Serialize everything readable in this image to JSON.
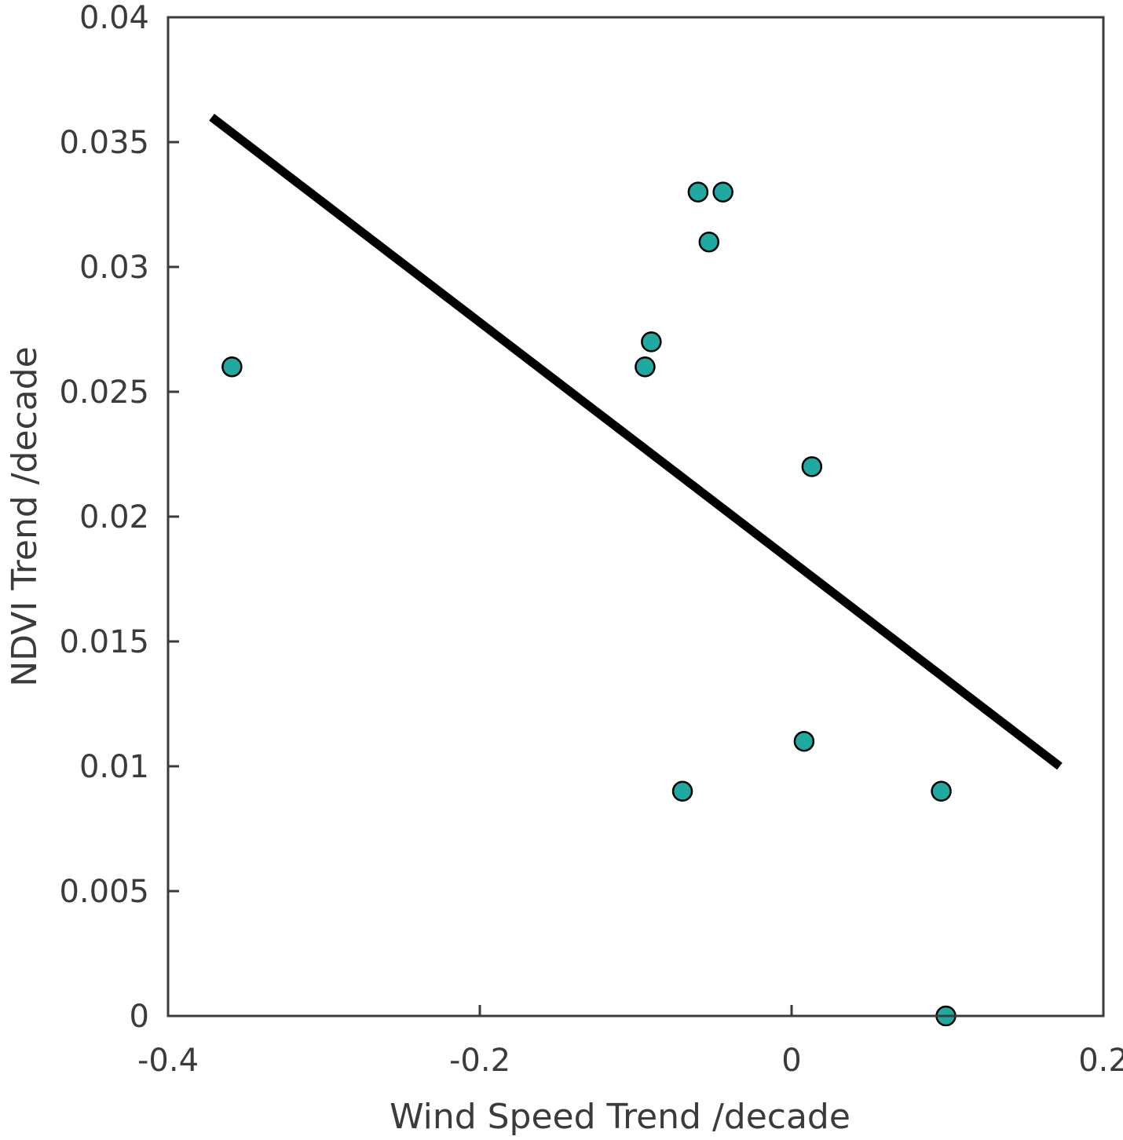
{
  "chart_data": {
    "type": "scatter",
    "title": "",
    "xlabel": "Wind Speed Trend /decade",
    "ylabel": "NDVI Trend /decade",
    "xlim": [
      -0.4,
      0.2
    ],
    "ylim": [
      0,
      0.04
    ],
    "x_ticks": [
      -0.4,
      -0.2,
      0,
      0.2
    ],
    "x_tick_labels": [
      "-0.4",
      "-0.2",
      "0",
      "0.2"
    ],
    "y_ticks": [
      0,
      0.005,
      0.01,
      0.015,
      0.02,
      0.025,
      0.03,
      0.035,
      0.04
    ],
    "y_tick_labels": [
      "0",
      "0.005",
      "0.01",
      "0.015",
      "0.02",
      "0.025",
      "0.03",
      "0.035",
      "0.04"
    ],
    "grid": false,
    "legend": "none",
    "marker_color": "#1fa9a0",
    "points": [
      {
        "x": -0.359,
        "y": 0.026
      },
      {
        "x": -0.094,
        "y": 0.026
      },
      {
        "x": -0.09,
        "y": 0.027
      },
      {
        "x": -0.06,
        "y": 0.033
      },
      {
        "x": -0.044,
        "y": 0.033
      },
      {
        "x": -0.053,
        "y": 0.031
      },
      {
        "x": -0.07,
        "y": 0.009
      },
      {
        "x": 0.013,
        "y": 0.022
      },
      {
        "x": 0.008,
        "y": 0.011
      },
      {
        "x": 0.096,
        "y": 0.009
      },
      {
        "x": 0.099,
        "y": 0.0
      }
    ],
    "trend_line": {
      "color": "#000000",
      "x": [
        -0.372,
        0.172
      ],
      "y": [
        0.036,
        0.01
      ]
    }
  }
}
